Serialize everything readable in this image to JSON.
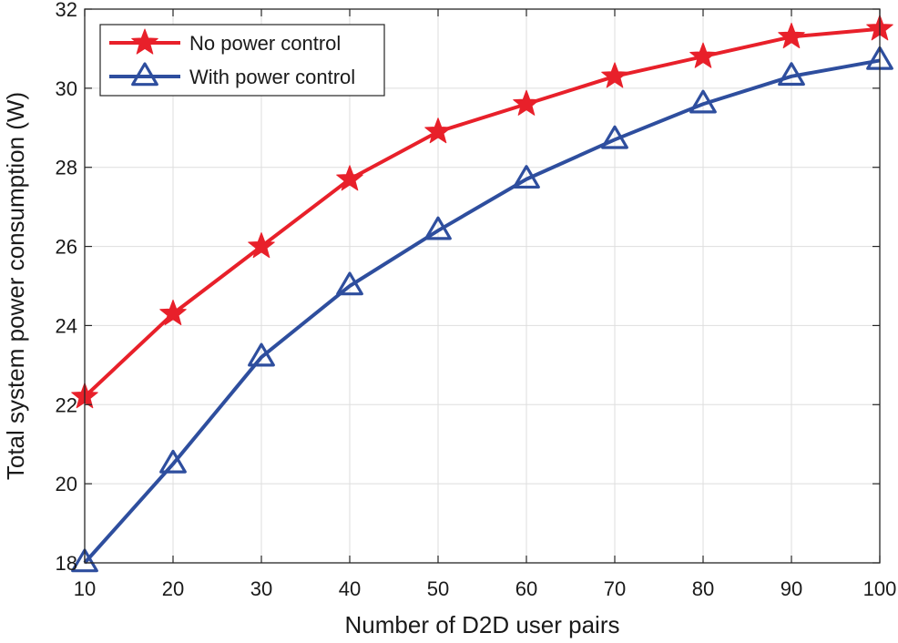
{
  "chart_data": {
    "type": "line",
    "xlabel": "Number of D2D user pairs",
    "ylabel": "Total system power consumption (W)",
    "xlim": [
      10,
      100
    ],
    "ylim": [
      18,
      32
    ],
    "x_ticks": [
      10,
      20,
      30,
      40,
      50,
      60,
      70,
      80,
      90,
      100
    ],
    "y_ticks": [
      18,
      20,
      22,
      24,
      26,
      28,
      30,
      32
    ],
    "grid": true,
    "legend_position": "top-left",
    "x": [
      10,
      20,
      30,
      40,
      50,
      60,
      70,
      80,
      90,
      100
    ],
    "series": [
      {
        "name": "No power control",
        "color": "#e8202a",
        "marker": "star",
        "values": [
          22.2,
          24.3,
          26.0,
          27.7,
          28.9,
          29.6,
          30.3,
          30.8,
          31.3,
          31.5
        ]
      },
      {
        "name": "With power control",
        "color": "#2e4e9e",
        "marker": "triangle",
        "values": [
          18.0,
          20.5,
          23.2,
          25.0,
          26.4,
          27.7,
          28.7,
          29.6,
          30.3,
          30.7
        ]
      }
    ]
  }
}
